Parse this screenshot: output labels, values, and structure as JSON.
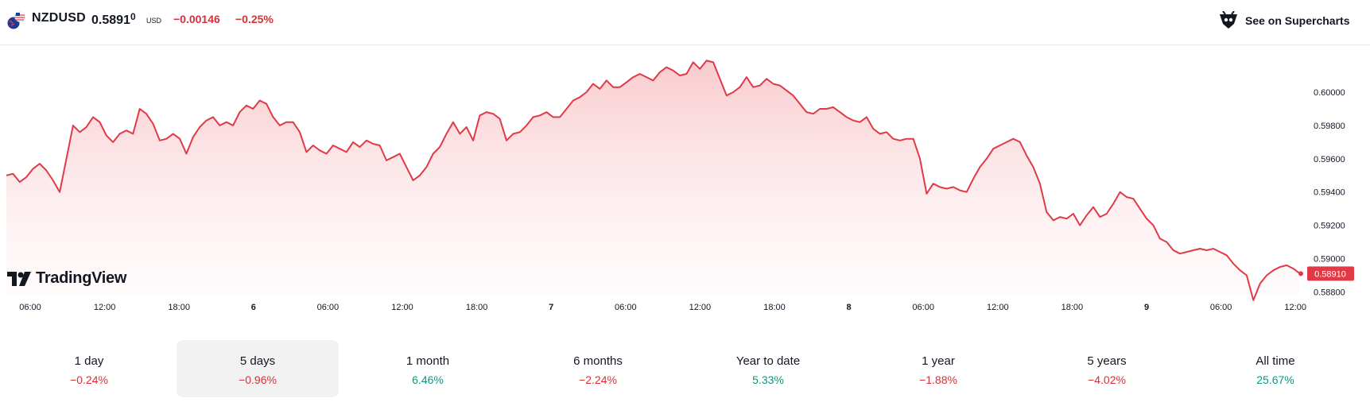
{
  "header": {
    "symbol": "NZDUSD",
    "price_main": "0.5891",
    "price_last_digit": "0",
    "currency": "USD",
    "change_abs": "−0.00146",
    "change_pct": "−0.25%",
    "supercharts_label": "See on Supercharts",
    "flag_icon": "nz-us-flag-icon",
    "supercharts_icon": "tradingview-bull-icon"
  },
  "brand": {
    "logo_text": "TradingView",
    "logo_icon": "tv-logo-icon"
  },
  "chart": {
    "y_ticks": [
      "0.60000",
      "0.59800",
      "0.59600",
      "0.59400",
      "0.59200",
      "0.59000",
      "0.58800"
    ],
    "x_ticks": [
      "06:00",
      "12:00",
      "18:00",
      "6",
      "06:00",
      "12:00",
      "18:00",
      "7",
      "06:00",
      "12:00",
      "18:00",
      "8",
      "06:00",
      "12:00",
      "18:00",
      "9",
      "06:00",
      "12:00"
    ],
    "x_bold": [
      false,
      false,
      false,
      true,
      false,
      false,
      false,
      true,
      false,
      false,
      false,
      true,
      false,
      false,
      false,
      true,
      false,
      false
    ],
    "price_badge": "0.58910",
    "line_color": "#e03a47",
    "area_color": "#f7c9cc"
  },
  "chart_data": {
    "type": "area",
    "series": [
      {
        "values": [
          0.595,
          0.5951,
          0.5946,
          0.5949,
          0.5954,
          0.5957,
          0.5953,
          0.5947,
          0.594,
          0.596,
          0.598,
          0.5976,
          0.5979,
          0.5985,
          0.5982,
          0.5974,
          0.597,
          0.5975,
          0.5977,
          0.5975,
          0.599,
          0.5987,
          0.5981,
          0.5971,
          0.5972,
          0.5975,
          0.5972,
          0.5963,
          0.5973,
          0.5979,
          0.5983,
          0.5985,
          0.598,
          0.5982,
          0.598,
          0.5988,
          0.5992,
          0.599,
          0.5995,
          0.5993,
          0.5985,
          0.598,
          0.5982,
          0.5982,
          0.5976,
          0.5964,
          0.5968,
          0.5965,
          0.5963,
          0.5968,
          0.5966,
          0.5964,
          0.597,
          0.5967,
          0.5971,
          0.5969,
          0.5968,
          0.5959,
          0.5961,
          0.5963,
          0.5955,
          0.5947,
          0.595,
          0.5955,
          0.5963,
          0.5967,
          0.5975,
          0.5982,
          0.5975,
          0.5979,
          0.5971,
          0.5986,
          0.5988,
          0.5987,
          0.5984,
          0.5971,
          0.5975,
          0.5976,
          0.598,
          0.5985,
          0.5986,
          0.5988,
          0.5985,
          0.5985,
          0.599,
          0.5995,
          0.5997,
          0.6,
          0.6005,
          0.6002,
          0.6007,
          0.6003,
          0.6003,
          0.6006,
          0.6009,
          0.6011,
          0.6009,
          0.6007,
          0.6012,
          0.6015,
          0.6013,
          0.601,
          0.6011,
          0.6018,
          0.6014,
          0.6019,
          0.6018,
          0.6008,
          0.5998,
          0.6,
          0.6003,
          0.6009,
          0.6003,
          0.6004,
          0.6008,
          0.6005,
          0.6004,
          0.6001,
          0.5998,
          0.5993,
          0.5988,
          0.5987,
          0.599,
          0.599,
          0.5991,
          0.5988,
          0.5985,
          0.5983,
          0.5982,
          0.5985,
          0.5978,
          0.5975,
          0.5976,
          0.5972,
          0.5971,
          0.5972,
          0.5972,
          0.596,
          0.5939,
          0.5945,
          0.5943,
          0.5942,
          0.5943,
          0.5941,
          0.594,
          0.5948,
          0.5955,
          0.596,
          0.5966,
          0.5968,
          0.597,
          0.5972,
          0.597,
          0.5962,
          0.5955,
          0.5945,
          0.5928,
          0.5923,
          0.5925,
          0.5924,
          0.5927,
          0.592,
          0.5926,
          0.5931,
          0.5925,
          0.5927,
          0.5933,
          0.594,
          0.5937,
          0.5936,
          0.593,
          0.5924,
          0.592,
          0.5912,
          0.591,
          0.5905,
          0.5903,
          0.5904,
          0.5905,
          0.5906,
          0.5905,
          0.5906,
          0.5904,
          0.5902,
          0.5897,
          0.5893,
          0.589,
          0.5875,
          0.5885,
          0.589,
          0.5893,
          0.5895,
          0.5896,
          0.5894,
          0.5891
        ]
      }
    ],
    "ylim": [
      0.5874,
      0.6021
    ],
    "y_ticks": [
      0.6,
      0.598,
      0.596,
      0.594,
      0.592,
      0.59,
      0.588
    ],
    "last_value": 0.5891
  },
  "periods": [
    {
      "label": "1 day",
      "value": "−0.24%",
      "tone": "neg"
    },
    {
      "label": "5 days",
      "value": "−0.96%",
      "tone": "neg",
      "active": true
    },
    {
      "label": "1 month",
      "value": "6.46%",
      "tone": "pos"
    },
    {
      "label": "6 months",
      "value": "−2.24%",
      "tone": "neg"
    },
    {
      "label": "Year to date",
      "value": "5.33%",
      "tone": "pos"
    },
    {
      "label": "1 year",
      "value": "−1.88%",
      "tone": "neg"
    },
    {
      "label": "5 years",
      "value": "−4.02%",
      "tone": "neg"
    },
    {
      "label": "All time",
      "value": "25.67%",
      "tone": "pos"
    }
  ]
}
